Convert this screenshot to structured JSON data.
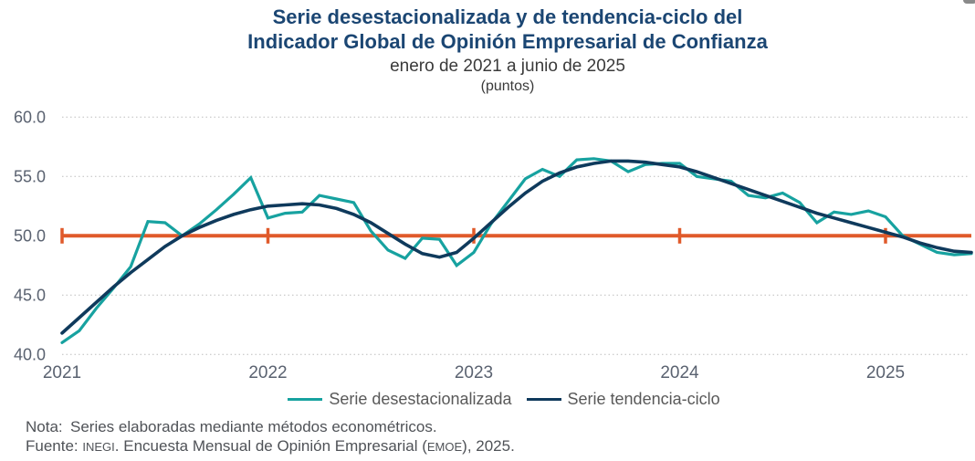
{
  "header": {
    "title_line1": "Serie desestacionalizada y de tendencia-ciclo del",
    "title_line2": "Indicador Global de Opinión Empresarial de Confianza",
    "subtitle": "enero de 2021 a junio de 2025",
    "units": "(puntos)"
  },
  "legend": {
    "items": [
      {
        "label": "Serie desestacionalizada",
        "color": "#17a2a0"
      },
      {
        "label": "Serie tendencia-ciclo",
        "color": "#0f3a5c"
      }
    ]
  },
  "notes": {
    "nota_label": "Nota:",
    "nota_text": "Series elaboradas mediante métodos econométricos.",
    "fuente_label": "Fuente:",
    "fuente_source": "INEGI",
    "fuente_mid": ". Encuesta Mensual de Opinión Empresarial (",
    "fuente_acronym": "EMOE",
    "fuente_end": "), 2025."
  },
  "chart_data": {
    "type": "line",
    "title": "Serie desestacionalizada y de tendencia-ciclo del Indicador Global de Opinión Empresarial de Confianza",
    "subtitle": "enero de 2021 a junio de 2025",
    "ylabel": "puntos",
    "x_unit": "month",
    "x_start": "2021-01",
    "x_end": "2025-06",
    "xticks": [
      "2021",
      "2022",
      "2023",
      "2024",
      "2025"
    ],
    "ytick_labels": [
      "60.0",
      "55.0",
      "50.0",
      "45.0",
      "40.0"
    ],
    "ylim": [
      40.0,
      60.0
    ],
    "grid": "horizontal-dotted",
    "legend_position": "bottom",
    "reference_line": {
      "value": 50.0,
      "color": "#e05a2b"
    },
    "series": [
      {
        "name": "Serie desestacionalizada",
        "color": "#17a2a0",
        "values": [
          41.0,
          42.0,
          43.9,
          45.6,
          47.4,
          51.2,
          51.1,
          50.0,
          51.0,
          52.2,
          53.5,
          54.9,
          51.5,
          51.9,
          52.0,
          53.4,
          53.1,
          52.8,
          50.4,
          48.8,
          48.1,
          49.8,
          49.7,
          47.5,
          48.6,
          51.0,
          52.9,
          54.8,
          55.6,
          55.0,
          56.4,
          56.5,
          56.3,
          55.4,
          56.0,
          56.1,
          56.1,
          55.0,
          54.8,
          54.6,
          53.4,
          53.2,
          53.6,
          52.8,
          51.1,
          52.0,
          51.8,
          52.1,
          51.6,
          50.0,
          49.3,
          48.6,
          48.4,
          48.5
        ]
      },
      {
        "name": "Serie tendencia-ciclo",
        "color": "#0f3a5c",
        "values": [
          41.8,
          43.1,
          44.4,
          45.7,
          46.9,
          48.0,
          49.1,
          50.0,
          50.7,
          51.3,
          51.8,
          52.2,
          52.5,
          52.6,
          52.7,
          52.6,
          52.3,
          51.8,
          51.1,
          50.2,
          49.3,
          48.5,
          48.2,
          48.6,
          49.8,
          51.1,
          52.4,
          53.6,
          54.6,
          55.3,
          55.8,
          56.1,
          56.3,
          56.3,
          56.2,
          56.0,
          55.8,
          55.4,
          54.9,
          54.4,
          53.9,
          53.4,
          52.9,
          52.4,
          51.9,
          51.5,
          51.1,
          50.7,
          50.3,
          49.9,
          49.4,
          49.0,
          48.7,
          48.6
        ]
      }
    ]
  }
}
